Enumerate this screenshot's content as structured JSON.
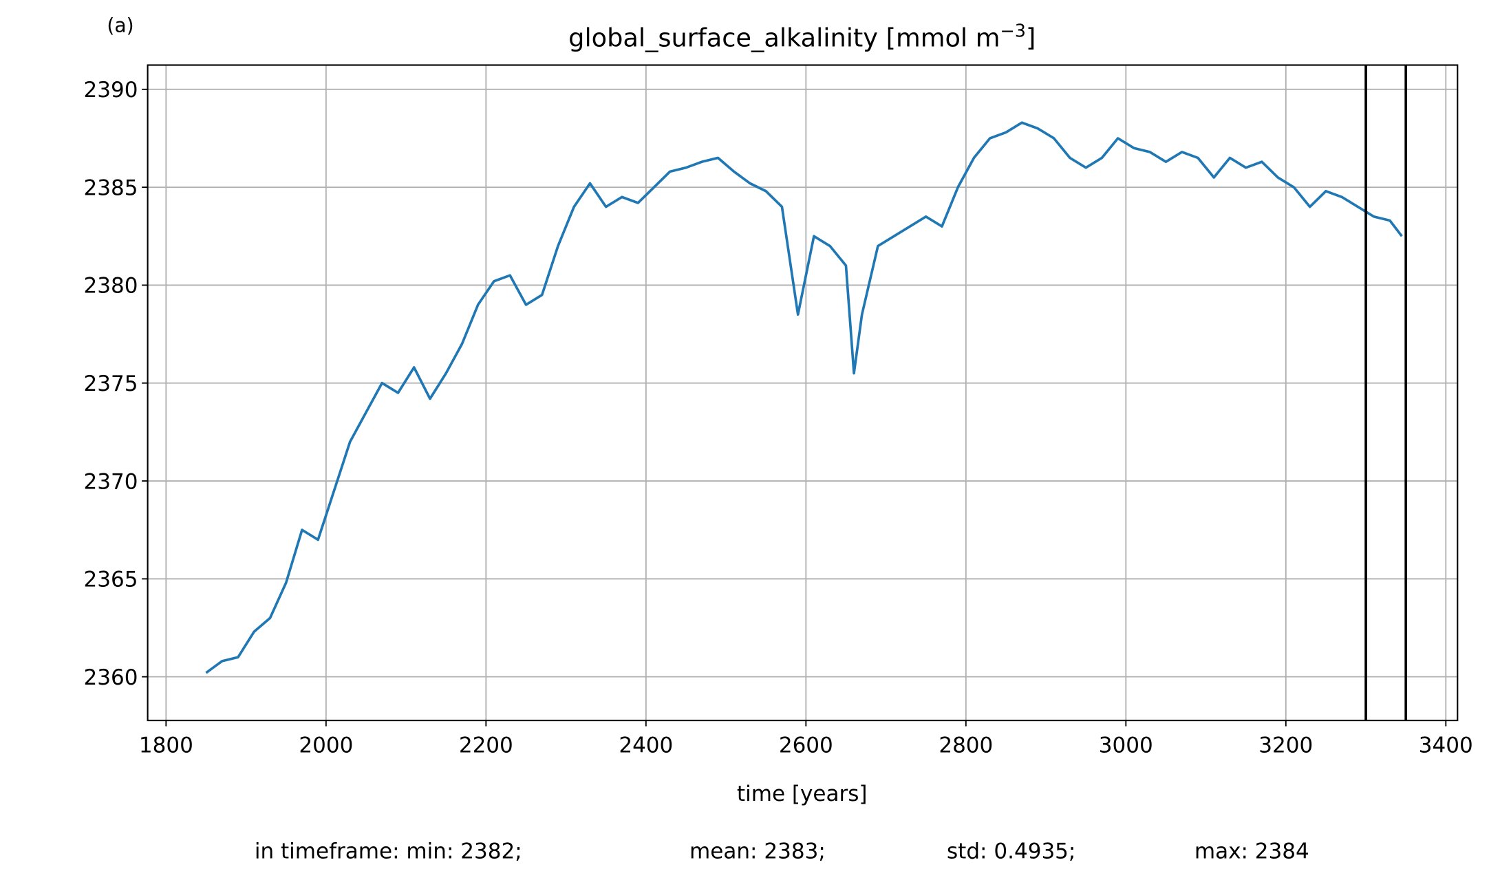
{
  "chart_data": {
    "type": "line",
    "panel_label": "(a)",
    "title": {
      "text": "global_surface_alkalinity [mmol m",
      "superscript": "−3",
      "suffix": "]"
    },
    "x_label": "time [years]",
    "footer": [
      "in timeframe: min: 2382;",
      "mean: 2383;",
      "std: 0.4935;",
      "max: 2384"
    ],
    "x": [
      1850,
      1870,
      1890,
      1910,
      1930,
      1950,
      1970,
      1990,
      2010,
      2030,
      2050,
      2070,
      2090,
      2110,
      2130,
      2150,
      2170,
      2190,
      2210,
      2230,
      2250,
      2270,
      2290,
      2310,
      2330,
      2350,
      2370,
      2390,
      2410,
      2430,
      2450,
      2470,
      2490,
      2510,
      2530,
      2550,
      2570,
      2590,
      2610,
      2630,
      2650,
      2660,
      2670,
      2690,
      2710,
      2730,
      2750,
      2770,
      2790,
      2810,
      2830,
      2850,
      2870,
      2890,
      2910,
      2930,
      2950,
      2970,
      2990,
      3010,
      3030,
      3050,
      3070,
      3090,
      3110,
      3130,
      3150,
      3170,
      3190,
      3210,
      3230,
      3250,
      3270,
      3290,
      3310,
      3330,
      3345
    ],
    "series": [
      {
        "name": "global_surface_alkalinity",
        "color": "#1f77b4",
        "values": [
          2360.2,
          2360.8,
          2361.0,
          2362.3,
          2363.0,
          2364.8,
          2367.5,
          2367.0,
          2369.5,
          2372.0,
          2373.5,
          2375.0,
          2374.5,
          2375.8,
          2374.2,
          2375.5,
          2377.0,
          2379.0,
          2380.2,
          2380.5,
          2379.0,
          2379.5,
          2382.0,
          2384.0,
          2385.2,
          2384.0,
          2384.5,
          2384.2,
          2385.0,
          2385.8,
          2386.0,
          2386.3,
          2386.5,
          2385.8,
          2385.2,
          2384.8,
          2384.0,
          2378.5,
          2382.5,
          2382.0,
          2381.0,
          2375.5,
          2378.5,
          2382.0,
          2382.5,
          2383.0,
          2383.5,
          2383.0,
          2385.0,
          2386.5,
          2387.5,
          2387.8,
          2388.3,
          2388.0,
          2387.5,
          2386.5,
          2386.0,
          2386.5,
          2387.5,
          2387.0,
          2386.8,
          2386.3,
          2386.8,
          2386.5,
          2385.5,
          2386.5,
          2386.0,
          2386.3,
          2385.5,
          2385.0,
          2384.0,
          2384.8,
          2384.5,
          2384.0,
          2383.5,
          2383.3,
          2382.5
        ]
      }
    ],
    "vlines": [
      3300,
      3350
    ],
    "vline_color": "#000000",
    "xlim": [
      1777,
      3414.6
    ],
    "ylim": [
      2357.77,
      2391.24
    ],
    "xticks": [
      1800,
      2000,
      2200,
      2400,
      2600,
      2800,
      3000,
      3200,
      3400
    ],
    "yticks": [
      2360,
      2365,
      2370,
      2375,
      2380,
      2385,
      2390
    ],
    "grid": true
  }
}
